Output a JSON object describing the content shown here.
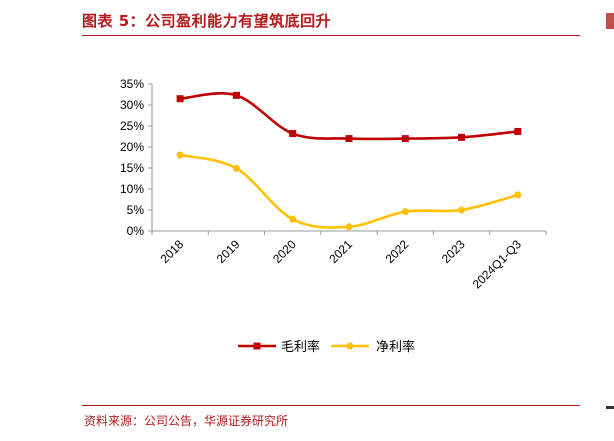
{
  "header": {
    "title": "图表 5：公司盈利能力有望筑底回升"
  },
  "footer": {
    "source": "资料来源：公司公告，华源证券研究所"
  },
  "chart_data": {
    "type": "line",
    "title": "",
    "xlabel": "",
    "ylabel": "",
    "categories": [
      "2018",
      "2019",
      "2020",
      "2021",
      "2022",
      "2023",
      "2024Q1-Q3"
    ],
    "ylim": [
      0,
      35
    ],
    "yticks": [
      0,
      5,
      10,
      15,
      20,
      25,
      30,
      35
    ],
    "ytick_labels": [
      "0%",
      "5%",
      "10%",
      "15%",
      "20%",
      "25%",
      "30%",
      "35%"
    ],
    "grid": false,
    "legend_position": "bottom",
    "series": [
      {
        "name": "毛利率",
        "color": "#c00000",
        "marker": "square",
        "values": [
          31.5,
          32.3,
          23.2,
          22.0,
          22.0,
          22.3,
          23.7
        ]
      },
      {
        "name": "净利率",
        "color": "#ffc000",
        "marker": "circle",
        "values": [
          18.1,
          14.9,
          2.8,
          1.0,
          4.6,
          5.0,
          8.6
        ]
      }
    ]
  }
}
